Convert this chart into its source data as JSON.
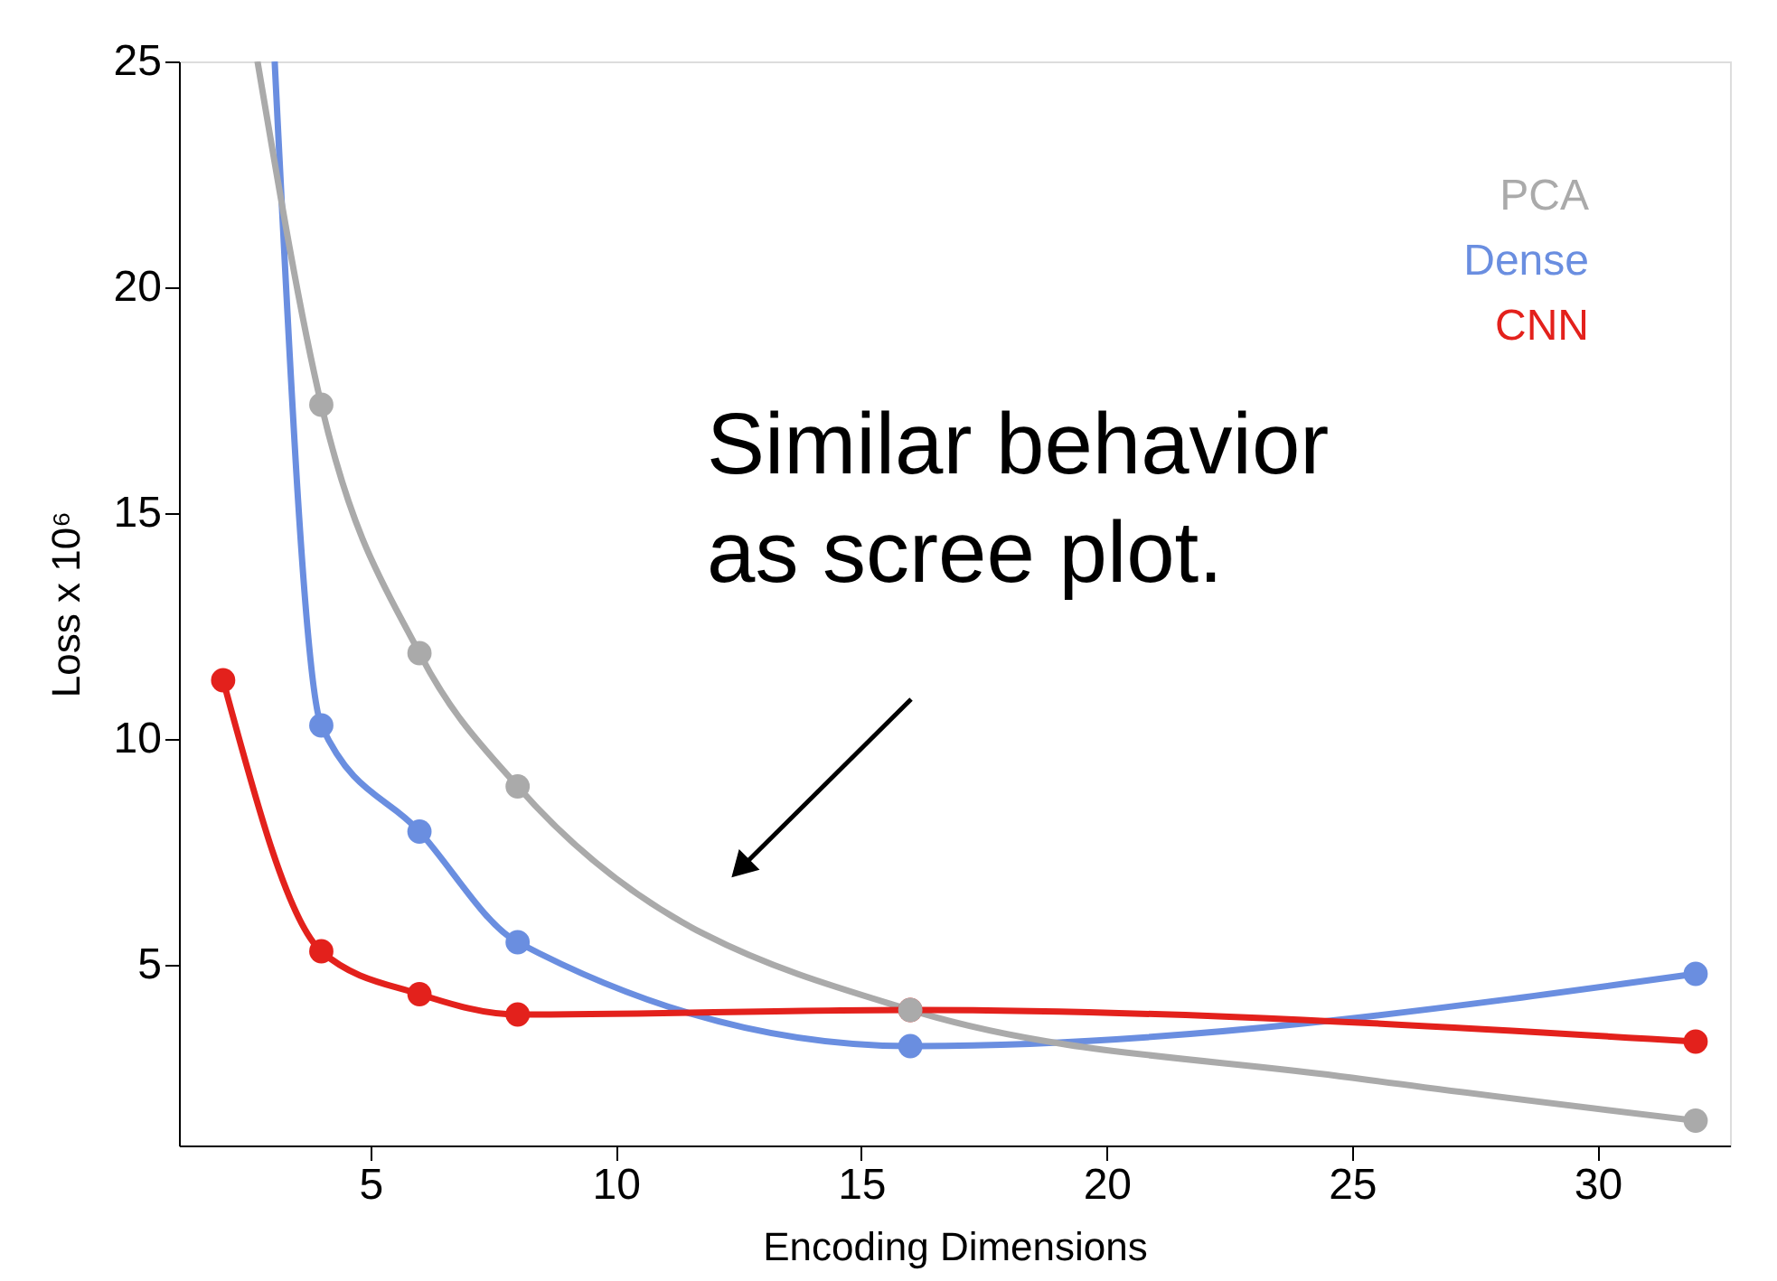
{
  "chart_data": {
    "type": "line",
    "xlabel": "Encoding Dimensions",
    "ylabel": "Loss x 10⁶",
    "xlim": [
      1.1,
      32.7
    ],
    "ylim": [
      1,
      25
    ],
    "xticks": [
      5,
      10,
      15,
      20,
      25,
      30
    ],
    "yticks": [
      5,
      10,
      15,
      20,
      25
    ],
    "grid": false,
    "legend": "top right",
    "line_style": "solid",
    "annotations": [
      {
        "text": "Similar behavior\nas scree plot.",
        "x": 12.6,
        "y": 7.2
      }
    ],
    "series": [
      {
        "name": "PCA",
        "color": "#aaaaaa",
        "type": "scatter",
        "marker": "circle",
        "x": [
          4,
          6,
          8,
          16,
          32
        ],
        "values": [
          17.4,
          11.9,
          8.95,
          4.0,
          1.55
        ]
      },
      {
        "name": "Dense",
        "color": "#6a8ee0",
        "type": "scatter",
        "marker": "circle",
        "x": [
          4,
          6,
          8,
          16,
          32
        ],
        "values": [
          10.3,
          7.95,
          5.5,
          3.2,
          4.8
        ]
      },
      {
        "name": "CNN",
        "color": "#e3211c",
        "type": "line",
        "marker": "circle",
        "x": [
          2,
          4,
          6,
          8,
          16,
          32
        ],
        "values": [
          11.3,
          5.3,
          4.35,
          3.9,
          4.0,
          3.3
        ]
      },
      {
        "color": "#aaaaaa",
        "type": "line",
        "marker": "none",
        "x": [
          2.7,
          4,
          6,
          8,
          16,
          25,
          32
        ],
        "values": [
          25,
          17.4,
          11.9,
          8.95,
          4.0,
          2.5,
          1.55
        ]
      },
      {
        "color": "#6a8ee0",
        "type": "line",
        "marker": "none",
        "x": [
          3.05,
          4,
          6,
          8,
          16,
          32
        ],
        "values": [
          25,
          10.3,
          7.95,
          5.5,
          3.2,
          4.8
        ]
      }
    ]
  }
}
